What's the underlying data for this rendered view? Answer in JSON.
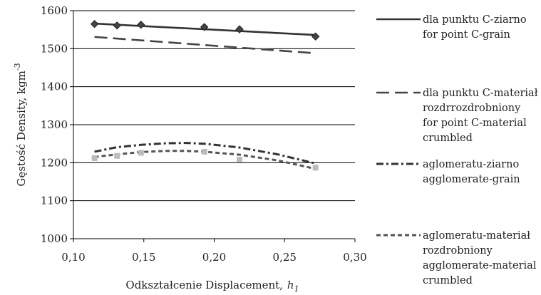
{
  "chart_data": {
    "type": "line",
    "xlabel": "Odkształcenie Displacement,",
    "xlabel_symbol": "h",
    "xlabel_subscript": "1",
    "ylabel": "Gęstość Density, kgm",
    "ylabel_exponent": "-3",
    "xlim": [
      0.1,
      0.3
    ],
    "ylim": [
      1000,
      1600
    ],
    "xticks": [
      "0,10",
      "0,15",
      "0,20",
      "0,25",
      "0,30"
    ],
    "yticks": [
      "1000",
      "1100",
      "1200",
      "1300",
      "1400",
      "1500",
      "1600"
    ],
    "grid": "horizontal",
    "legend_position": "right",
    "series": [
      {
        "key": "c_grain",
        "legend": [
          "dla punktu C-ziarno",
          "for point C-grain"
        ],
        "style": "solid",
        "color": "#333333",
        "marker": "diamond",
        "points": [
          [
            0.115,
            1565
          ],
          [
            0.131,
            1561
          ],
          [
            0.148,
            1563
          ],
          [
            0.193,
            1557
          ],
          [
            0.218,
            1551
          ],
          [
            0.272,
            1532
          ]
        ],
        "trend": [
          [
            0.115,
            1566
          ],
          [
            0.272,
            1536
          ]
        ]
      },
      {
        "key": "c_material",
        "legend": [
          "dla punktu C-materiał",
          "rozdrrozdrobniony",
          "for point C-material",
          "crumbled"
        ],
        "style": "longdash",
        "color": "#444444",
        "marker": "none",
        "points": [],
        "trend": [
          [
            0.115,
            1531
          ],
          [
            0.272,
            1488
          ]
        ]
      },
      {
        "key": "agg_grain",
        "legend": [
          "aglomeratu-ziarno",
          "agglomerate-grain"
        ],
        "style": "dotted",
        "color": "#333333",
        "marker": "none",
        "points": [
          [
            0.115,
            1229
          ],
          [
            0.131,
            1240
          ],
          [
            0.148,
            1248
          ],
          [
            0.193,
            1250
          ],
          [
            0.218,
            1240
          ],
          [
            0.272,
            1198
          ]
        ],
        "trend": [
          [
            0.115,
            1229
          ],
          [
            0.131,
            1241
          ],
          [
            0.148,
            1247
          ],
          [
            0.165,
            1251
          ],
          [
            0.18,
            1252
          ],
          [
            0.193,
            1250
          ],
          [
            0.218,
            1240
          ],
          [
            0.245,
            1222
          ],
          [
            0.272,
            1198
          ]
        ]
      },
      {
        "key": "agg_material",
        "legend": [
          "aglomeratu-materiał",
          "rozdrobniony",
          "agglomerate-material",
          "crumbled"
        ],
        "style": "shortdash",
        "color": "#555555",
        "marker": "square",
        "points": [
          [
            0.115,
            1212
          ],
          [
            0.131,
            1218
          ],
          [
            0.148,
            1226
          ],
          [
            0.193,
            1229
          ],
          [
            0.218,
            1208
          ],
          [
            0.272,
            1187
          ]
        ],
        "trend": [
          [
            0.115,
            1215
          ],
          [
            0.131,
            1222
          ],
          [
            0.148,
            1228
          ],
          [
            0.165,
            1231
          ],
          [
            0.18,
            1231
          ],
          [
            0.193,
            1229
          ],
          [
            0.218,
            1221
          ],
          [
            0.245,
            1206
          ],
          [
            0.272,
            1184
          ]
        ]
      }
    ]
  }
}
